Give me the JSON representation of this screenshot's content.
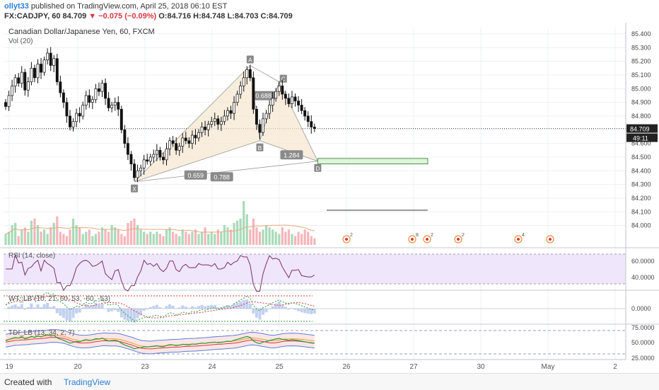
{
  "header": {
    "user": "ollyt33",
    "published": " published on TradingView.com, April 25, 2018 06:10 EST",
    "symbol": "FX:CADJPY, 60",
    "last": "84.709",
    "change": "−0.075 (−0.09%)",
    "ohlc": "O:84.716 H:84.748 L:84.703 C:84.709"
  },
  "chart_title": "Canadian Dollar/Japanese Yen, 60, FXCM",
  "vol_label": "Vol (20)",
  "rsi_label": "RSI (14, close)",
  "wt_label": "WT_LB (10, 21, 60, 53, -60, -53)",
  "tdi_label": "TDI_LB (13, 34, 2, 7)",
  "footer": {
    "created_with": "Created with",
    "brand": "TradingView"
  },
  "chart_data": {
    "type": "candlestick",
    "price_axis": [
      "85.400",
      "85.300",
      "85.200",
      "85.100",
      "85.000",
      "84.900",
      "84.800",
      "84.700",
      "84.600",
      "84.500",
      "84.400",
      "84.300",
      "84.200",
      "84.100",
      "84.000"
    ],
    "price_range": [
      83.95,
      85.45
    ],
    "last_price": "84.709",
    "countdown": "49:11",
    "x_ticks": [
      "19",
      "20",
      "23",
      "24",
      "25",
      "26",
      "27",
      "30",
      "May",
      "2"
    ],
    "rsi_axis": [
      "60.0000",
      "40.0000"
    ],
    "wt_axis": [
      "0.0000"
    ],
    "tdi_axis": [
      "75.0000",
      "50.0000",
      "25.0000"
    ],
    "harmonic": {
      "points": [
        {
          "label": "X",
          "bar": 40,
          "price": 84.32
        },
        {
          "label": "A",
          "bar": 76,
          "price": 85.17
        },
        {
          "label": "B",
          "bar": 79,
          "price": 84.62
        },
        {
          "label": "C",
          "bar": 85,
          "price": 85.05
        },
        {
          "label": "D",
          "bar": 97,
          "price": 84.47
        }
      ],
      "ratios": [
        "0.688",
        "0.659",
        "1.284",
        "0.788"
      ],
      "target_box": [
        84.45,
        84.49
      ]
    },
    "closes": [
      84.87,
      84.95,
      85.02,
      85.08,
      85.04,
      85.12,
      84.99,
      85.05,
      85.15,
      85.08,
      85.18,
      85.12,
      85.21,
      85.26,
      85.17,
      85.22,
      85.05,
      84.97,
      84.9,
      84.8,
      84.72,
      84.76,
      84.82,
      84.8,
      84.88,
      84.95,
      84.9,
      84.92,
      85.0,
      84.98,
      85.04,
      84.93,
      84.86,
      84.88,
      84.9,
      84.85,
      84.7,
      84.6,
      84.52,
      84.45,
      84.35,
      84.4,
      84.42,
      84.48,
      84.47,
      84.5,
      84.52,
      84.55,
      84.5,
      84.48,
      84.56,
      84.62,
      84.6,
      84.55,
      84.58,
      84.64,
      84.62,
      84.6,
      84.66,
      84.64,
      84.68,
      84.72,
      84.7,
      84.74,
      84.76,
      84.78,
      84.74,
      84.76,
      84.8,
      84.84,
      84.82,
      84.9,
      84.96,
      85.02,
      85.08,
      85.14,
      85.08,
      84.85,
      84.74,
      84.68,
      84.78,
      84.82,
      84.88,
      84.93,
      84.98,
      85.02,
      84.96,
      84.93,
      84.89,
      84.94,
      84.91,
      84.88,
      84.84,
      84.8,
      84.76,
      84.72,
      84.709
    ],
    "volume": [
      25,
      30,
      45,
      50,
      20,
      35,
      40,
      30,
      55,
      60,
      45,
      30,
      35,
      25,
      40,
      50,
      65,
      30,
      25,
      20,
      35,
      60,
      45,
      40,
      25,
      30,
      35,
      20,
      25,
      30,
      40,
      35,
      30,
      45,
      40,
      35,
      25,
      20,
      50,
      55,
      60,
      45,
      35,
      30,
      25,
      30,
      25,
      30,
      25,
      20,
      35,
      40,
      30,
      25,
      20,
      35,
      30,
      25,
      30,
      35,
      25,
      30,
      40,
      25,
      30,
      25,
      35,
      30,
      45,
      40,
      35,
      50,
      55,
      60,
      100,
      70,
      35,
      60,
      40,
      30,
      35,
      45,
      40,
      35,
      30,
      25,
      40,
      30,
      35,
      25,
      20,
      30,
      25,
      35,
      30,
      20,
      15
    ]
  }
}
